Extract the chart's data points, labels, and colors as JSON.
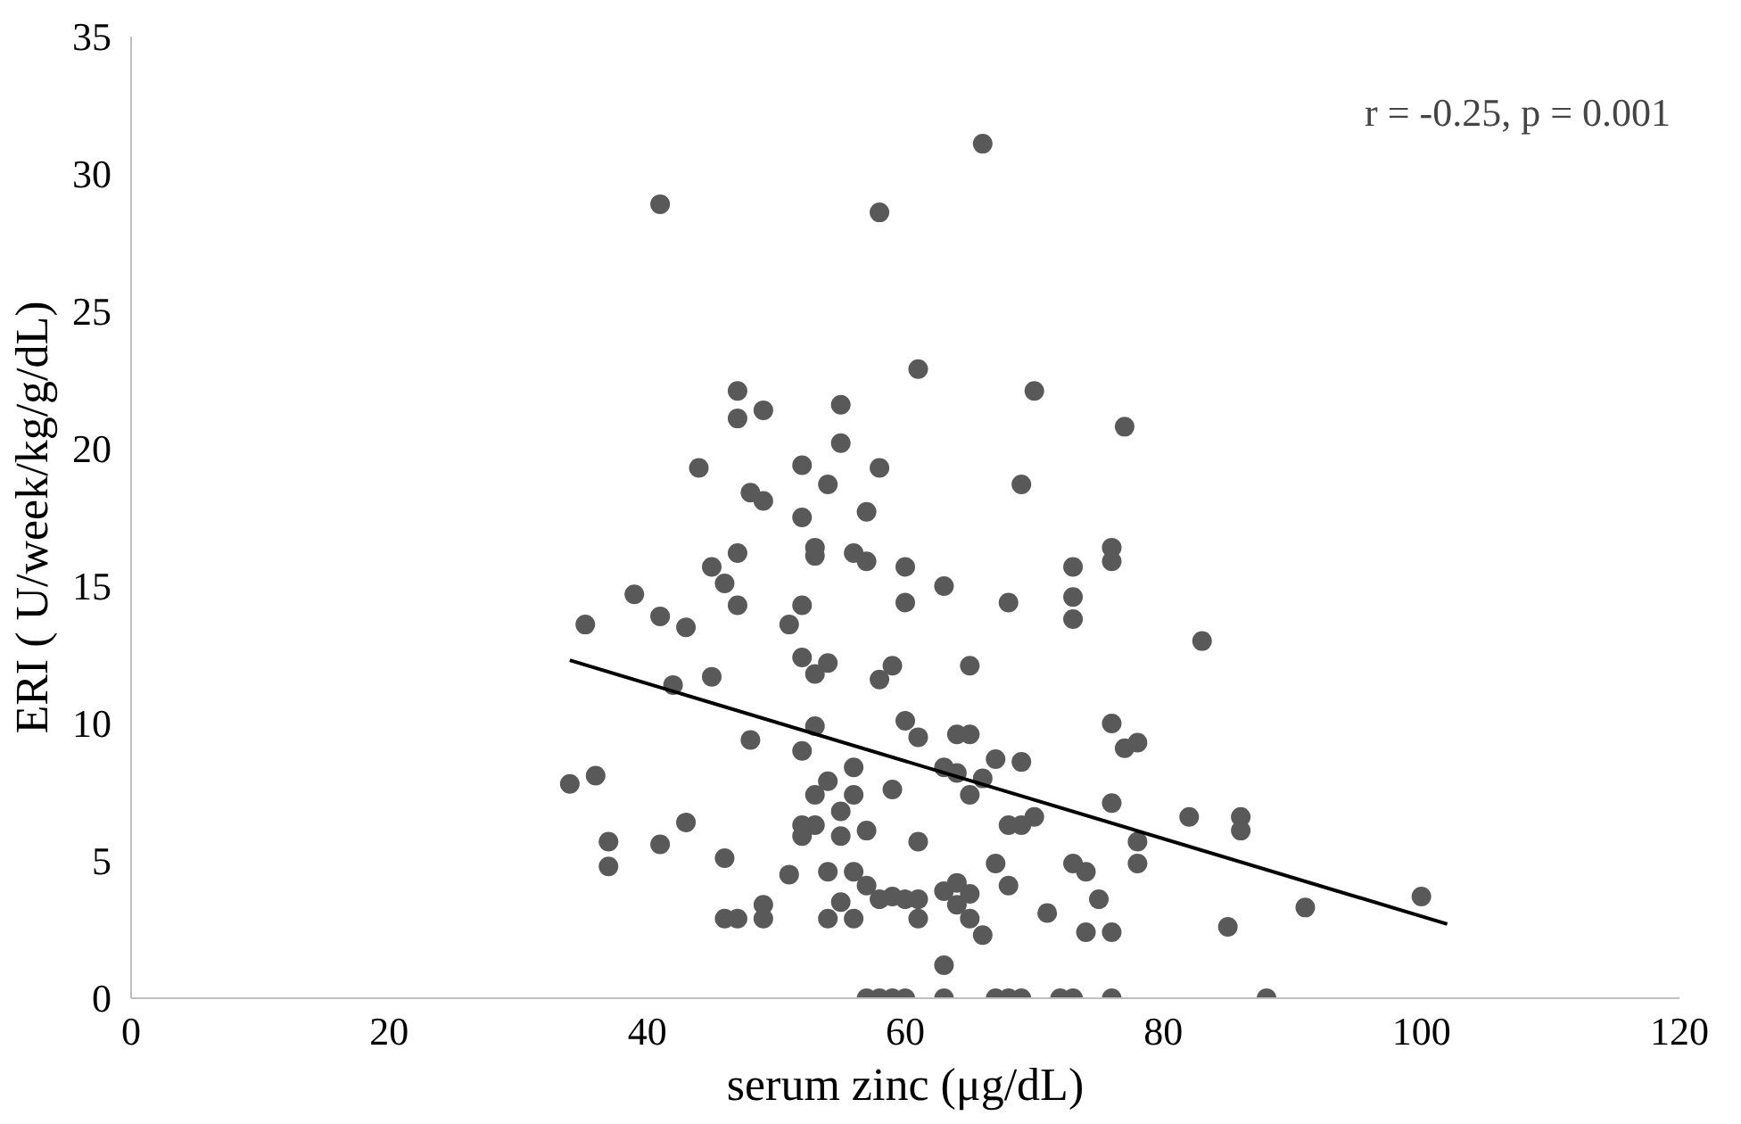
{
  "chart_data": {
    "type": "scatter",
    "xlabel": "serum zinc (μg/dL)",
    "ylabel": "ERI ( U/week/kg/g/dL)",
    "xlim": [
      0,
      120
    ],
    "xticks": [
      0,
      20,
      40,
      60,
      80,
      100,
      120
    ],
    "ylim": [
      0,
      35
    ],
    "yticks": [
      0,
      5,
      10,
      15,
      20,
      25,
      30,
      35
    ],
    "grid": false,
    "annotations": [
      "r = -0.25, p = 0.001"
    ],
    "series": [
      {
        "marker": "circle",
        "color": "#595959",
        "x": [
          34,
          35.2,
          36,
          37,
          37,
          39,
          41,
          41,
          41,
          42,
          43,
          43,
          44,
          45,
          45,
          46,
          46,
          46,
          47,
          47,
          47,
          47,
          47,
          48,
          48,
          49,
          49,
          49,
          49,
          51,
          51,
          52,
          52,
          52,
          52,
          52,
          52,
          52,
          53,
          53,
          53,
          53,
          53,
          53,
          54,
          54,
          54,
          54,
          54,
          55,
          55,
          55,
          55,
          55,
          56,
          56,
          56,
          56,
          56,
          57,
          57,
          57,
          57,
          57,
          58,
          58,
          58,
          58,
          58,
          59,
          59,
          59,
          59,
          60,
          60,
          60,
          60,
          60,
          61,
          61,
          61,
          61,
          61,
          63,
          63,
          63,
          63,
          63,
          64,
          64,
          64,
          64,
          65,
          65,
          65,
          65,
          65,
          66,
          66,
          66,
          67,
          67,
          67,
          68,
          68,
          68,
          68,
          69,
          69,
          69,
          69,
          70,
          70,
          71,
          72,
          73,
          73,
          73,
          73,
          73,
          74,
          74,
          75,
          76,
          76,
          76,
          76,
          76,
          76,
          77,
          77,
          78,
          78,
          78,
          82,
          83,
          85,
          86,
          86,
          88,
          91,
          100
        ],
        "values": [
          7.8,
          13.6,
          8.1,
          5.7,
          4.8,
          14.7,
          13.9,
          28.9,
          5.6,
          11.4,
          13.5,
          6.4,
          19.3,
          11.7,
          15.7,
          15.1,
          5.1,
          2.9,
          21.1,
          22.1,
          14.3,
          16.2,
          2.9,
          18.4,
          9.4,
          18.1,
          21.4,
          3.4,
          2.9,
          13.6,
          4.5,
          19.4,
          17.5,
          14.3,
          12.4,
          9,
          6.3,
          5.9,
          16.4,
          16.1,
          11.8,
          9.9,
          7.4,
          6.3,
          18.7,
          12.2,
          7.9,
          4.6,
          2.9,
          21.6,
          20.2,
          6.8,
          5.9,
          3.5,
          8.4,
          7.4,
          4.6,
          2.9,
          16.2,
          17.7,
          15.9,
          6.1,
          4.1,
          0,
          19.3,
          28.6,
          11.6,
          3.6,
          0,
          12.1,
          7.6,
          3.7,
          0,
          15.7,
          14.4,
          10.1,
          3.6,
          0,
          22.9,
          9.5,
          5.7,
          3.6,
          2.9,
          15,
          8.4,
          3.9,
          1.2,
          0,
          9.6,
          8.2,
          4.2,
          3.4,
          12.1,
          9.6,
          7.4,
          3.8,
          2.9,
          31.1,
          8,
          2.3,
          8.7,
          4.9,
          0,
          14.4,
          6.3,
          4.1,
          0,
          18.7,
          8.6,
          6.3,
          0,
          22.1,
          6.6,
          3.1,
          0,
          13.8,
          15.7,
          14.6,
          4.9,
          0,
          4.6,
          2.4,
          3.6,
          16.4,
          15.9,
          10,
          7.1,
          2.4,
          0,
          20.8,
          9.1,
          9.3,
          5.7,
          4.9,
          6.6,
          13,
          2.6,
          6.6,
          6.1,
          0,
          3.3,
          3.7
        ]
      },
      {
        "type": "line",
        "marker": "none",
        "color": "#000000",
        "x": [
          34,
          102
        ],
        "values": [
          12.3,
          2.7
        ]
      }
    ]
  }
}
